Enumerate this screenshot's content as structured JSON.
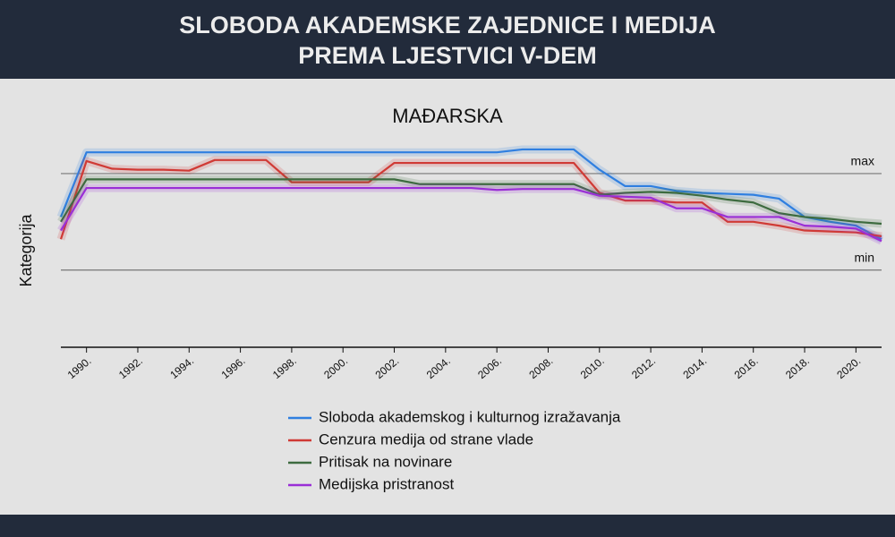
{
  "chart_data": {
    "type": "line",
    "title_lines": [
      "SLOBODA AKADEMSKE ZAJEDNICE I MEDIJA",
      "PREMA LJESTVICI V-DEM"
    ],
    "subtitle": "MAĐARSKA",
    "y_label": "Kategorija",
    "x": [
      1989,
      1990,
      1991,
      1992,
      1993,
      1994,
      1995,
      1996,
      1997,
      1998,
      1999,
      2000,
      2001,
      2002,
      2003,
      2004,
      2005,
      2006,
      2007,
      2008,
      2009,
      2010,
      2011,
      2012,
      2013,
      2014,
      2015,
      2016,
      2017,
      2018,
      2019,
      2020,
      2021
    ],
    "xlim": [
      1989,
      2021
    ],
    "xticks": [
      {
        "value": 1990,
        "label": "1990."
      },
      {
        "value": 1992,
        "label": "1992."
      },
      {
        "value": 1994,
        "label": "1994."
      },
      {
        "value": 1996,
        "label": "1996."
      },
      {
        "value": 1998,
        "label": "1998."
      },
      {
        "value": 2000,
        "label": "2000."
      },
      {
        "value": 2002,
        "label": "2002."
      },
      {
        "value": 2004,
        "label": "2004."
      },
      {
        "value": 2006,
        "label": "2006."
      },
      {
        "value": 2008,
        "label": "2008."
      },
      {
        "value": 2010,
        "label": "2010."
      },
      {
        "value": 2012,
        "label": "2012."
      },
      {
        "value": 2014,
        "label": "2014."
      },
      {
        "value": 2016,
        "label": "2016."
      },
      {
        "value": 2018,
        "label": "2018."
      },
      {
        "value": 2020,
        "label": "2020."
      }
    ],
    "ylim": [
      -0.8,
      1.5
    ],
    "yticks": [
      {
        "value": 0,
        "label": "min"
      },
      {
        "value": 1,
        "label": "max"
      }
    ],
    "series": [
      {
        "name": "Sloboda akademskog i kulturnog izražavanja",
        "color": "#2f7fe0",
        "values": [
          0.55,
          1.22,
          1.22,
          1.22,
          1.22,
          1.22,
          1.22,
          1.22,
          1.22,
          1.22,
          1.22,
          1.22,
          1.22,
          1.22,
          1.22,
          1.22,
          1.22,
          1.22,
          1.25,
          1.25,
          1.25,
          1.04,
          0.87,
          0.87,
          0.82,
          0.8,
          0.79,
          0.78,
          0.74,
          0.55,
          0.5,
          0.46,
          0.32
        ]
      },
      {
        "name": "Cenzura medija od strane vlade",
        "color": "#d03a35",
        "values": [
          0.32,
          1.13,
          1.05,
          1.04,
          1.04,
          1.03,
          1.14,
          1.14,
          1.14,
          0.91,
          0.91,
          0.91,
          0.91,
          1.11,
          1.11,
          1.11,
          1.11,
          1.11,
          1.11,
          1.11,
          1.11,
          0.8,
          0.72,
          0.72,
          0.7,
          0.7,
          0.5,
          0.5,
          0.46,
          0.41,
          0.4,
          0.39,
          0.35
        ]
      },
      {
        "name": "Pritisak na novinare",
        "color": "#3d6b3f",
        "values": [
          0.5,
          0.94,
          0.94,
          0.94,
          0.94,
          0.94,
          0.94,
          0.94,
          0.94,
          0.94,
          0.94,
          0.94,
          0.94,
          0.94,
          0.89,
          0.89,
          0.89,
          0.89,
          0.89,
          0.89,
          0.89,
          0.78,
          0.8,
          0.81,
          0.8,
          0.77,
          0.73,
          0.7,
          0.59,
          0.55,
          0.53,
          0.5,
          0.48
        ]
      },
      {
        "name": "Medijska pristranost",
        "color": "#9a2fd6",
        "values": [
          0.41,
          0.85,
          0.85,
          0.85,
          0.85,
          0.85,
          0.85,
          0.85,
          0.85,
          0.85,
          0.85,
          0.85,
          0.85,
          0.85,
          0.85,
          0.85,
          0.85,
          0.83,
          0.84,
          0.84,
          0.84,
          0.77,
          0.76,
          0.75,
          0.64,
          0.64,
          0.55,
          0.55,
          0.55,
          0.46,
          0.45,
          0.43,
          0.3
        ]
      }
    ]
  }
}
